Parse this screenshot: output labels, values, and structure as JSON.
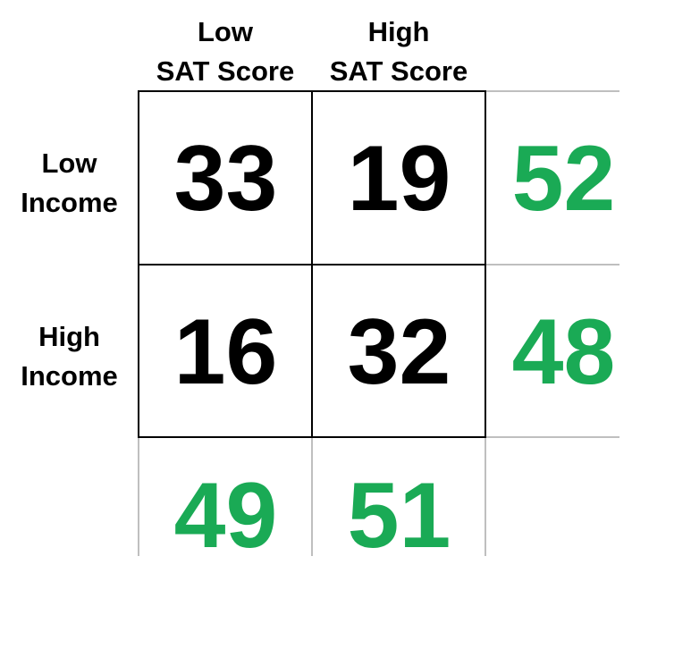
{
  "columns": [
    {
      "line1": "Low",
      "line2": "SAT Score"
    },
    {
      "line1": "High",
      "line2": "SAT Score"
    }
  ],
  "rows": [
    {
      "line1": "Low",
      "line2": "Income"
    },
    {
      "line1": "High",
      "line2": "Income"
    }
  ],
  "cells": [
    [
      "33",
      "19"
    ],
    [
      "16",
      "32"
    ]
  ],
  "row_totals": [
    "52",
    "48"
  ],
  "col_totals": [
    "49",
    "51"
  ],
  "colors": {
    "cell_text": "#000000",
    "total_text": "#1aaa55",
    "border": "#000000",
    "light_grid": "#bfbfbf"
  }
}
